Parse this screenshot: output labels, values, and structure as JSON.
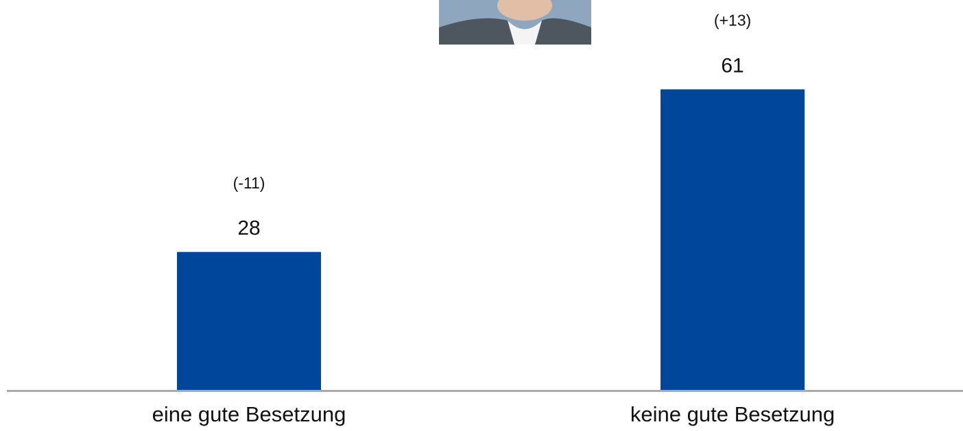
{
  "chart_data": {
    "type": "bar",
    "categories": [
      "eine gute Besetzung",
      "keine gute Besetzung"
    ],
    "values": [
      28,
      61
    ],
    "annotations": [
      "(-11)",
      "(+13)"
    ],
    "color": "#00479b"
  }
}
